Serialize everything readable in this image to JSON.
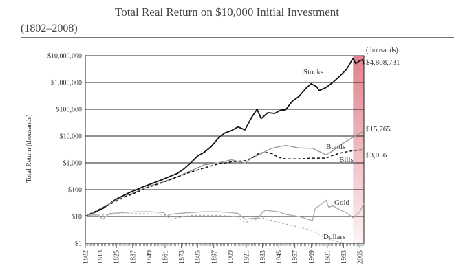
{
  "chart_data": {
    "type": "line",
    "title": "Total Real Return on $10,000 Initial Investment",
    "subtitle": "(1802–2008)",
    "ylabel": "Total Return (thousands)",
    "xlabel": "",
    "y_scale": "log",
    "ylim": [
      1,
      10000000
    ],
    "xlim": [
      1802,
      2008
    ],
    "units_note": "(thousands)",
    "y_ticks": [
      {
        "value": 1,
        "label": "$1"
      },
      {
        "value": 10,
        "label": "$10"
      },
      {
        "value": 100,
        "label": "$100"
      },
      {
        "value": 1000,
        "label": "$1,000"
      },
      {
        "value": 10000,
        "label": "$10,000"
      },
      {
        "value": 100000,
        "label": "$100,000"
      },
      {
        "value": 1000000,
        "label": "$1,000,000"
      },
      {
        "value": 10000000,
        "label": "$10,000,000"
      }
    ],
    "x_ticks": [
      1802,
      1813,
      1825,
      1837,
      1849,
      1861,
      1873,
      1885,
      1897,
      1909,
      1921,
      1933,
      1945,
      1957,
      1969,
      1981,
      1993,
      2005
    ],
    "highlight": {
      "from": 2000,
      "to": 2008,
      "color": "#e07a86"
    },
    "series": [
      {
        "name": "Stocks",
        "color": "#111111",
        "end_label": "$4,808,731",
        "x": [
          1802,
          1805,
          1810,
          1815,
          1820,
          1825,
          1830,
          1835,
          1840,
          1845,
          1850,
          1855,
          1860,
          1865,
          1870,
          1875,
          1880,
          1885,
          1890,
          1895,
          1900,
          1905,
          1910,
          1915,
          1920,
          1925,
          1929,
          1932,
          1937,
          1942,
          1946,
          1950,
          1955,
          1960,
          1965,
          1969,
          1973,
          1975,
          1980,
          1985,
          1990,
          1995,
          2000,
          2002,
          2005,
          2007,
          2008
        ],
        "y": [
          10,
          12,
          15,
          20,
          30,
          45,
          60,
          80,
          100,
          130,
          160,
          200,
          250,
          320,
          400,
          600,
          1000,
          1800,
          2500,
          4000,
          8000,
          13000,
          16000,
          22000,
          17000,
          50000,
          100000,
          45000,
          75000,
          70000,
          90000,
          95000,
          200000,
          300000,
          600000,
          900000,
          700000,
          500000,
          650000,
          1000000,
          1700000,
          3000000,
          8000000,
          5000000,
          6500000,
          7000000,
          4808731
        ]
      },
      {
        "name": "Bonds",
        "color": "#999999",
        "end_label": "$15,765",
        "x": [
          1802,
          1810,
          1820,
          1830,
          1840,
          1850,
          1860,
          1870,
          1880,
          1890,
          1900,
          1910,
          1920,
          1925,
          1930,
          1940,
          1950,
          1960,
          1970,
          1980,
          1985,
          1990,
          2000,
          2008
        ],
        "y": [
          10,
          16,
          30,
          55,
          85,
          140,
          200,
          300,
          500,
          850,
          1000,
          1300,
          1000,
          1500,
          2000,
          3500,
          4500,
          3600,
          3500,
          2000,
          2800,
          4500,
          9000,
          15765
        ]
      },
      {
        "name": "Bills",
        "color": "#111111",
        "end_label": "$3,056",
        "x": [
          1802,
          1810,
          1820,
          1830,
          1840,
          1850,
          1860,
          1870,
          1880,
          1890,
          1900,
          1910,
          1920,
          1925,
          1930,
          1935,
          1940,
          1945,
          1950,
          1960,
          1970,
          1980,
          1985,
          1990,
          2000,
          2008
        ],
        "y": [
          10,
          16,
          28,
          50,
          80,
          130,
          190,
          300,
          450,
          650,
          900,
          1100,
          1200,
          1500,
          2200,
          2500,
          2200,
          1600,
          1400,
          1400,
          1500,
          1500,
          1900,
          2300,
          2900,
          3056
        ]
      },
      {
        "name": "Gold",
        "color": "#aaaaaa",
        "end_label": "",
        "x": [
          1802,
          1810,
          1815,
          1820,
          1830,
          1840,
          1850,
          1860,
          1862,
          1865,
          1870,
          1880,
          1890,
          1900,
          1910,
          1915,
          1920,
          1930,
          1933,
          1935,
          1945,
          1950,
          1960,
          1970,
          1972,
          1975,
          1980,
          1982,
          1985,
          1990,
          1995,
          2000,
          2005,
          2008
        ],
        "y": [
          10,
          12,
          8,
          13,
          14,
          15,
          15,
          14,
          10,
          12,
          13,
          14,
          15,
          15,
          14,
          13,
          8,
          9,
          14,
          17,
          15,
          12,
          10,
          7,
          20,
          25,
          40,
          22,
          25,
          18,
          14,
          9,
          15,
          30
        ]
      },
      {
        "name": "Dollars",
        "color": "#aaaaaa",
        "dashed": true,
        "end_label": "",
        "x": [
          1802,
          1820,
          1840,
          1860,
          1865,
          1880,
          1900,
          1914,
          1920,
          1933,
          1945,
          1960,
          1970,
          1980,
          1990,
          2008
        ],
        "y": [
          10,
          12,
          13,
          12,
          8,
          11,
          11,
          10,
          6,
          9,
          6,
          4,
          3,
          1.5,
          1.1,
          0.7
        ]
      }
    ]
  }
}
